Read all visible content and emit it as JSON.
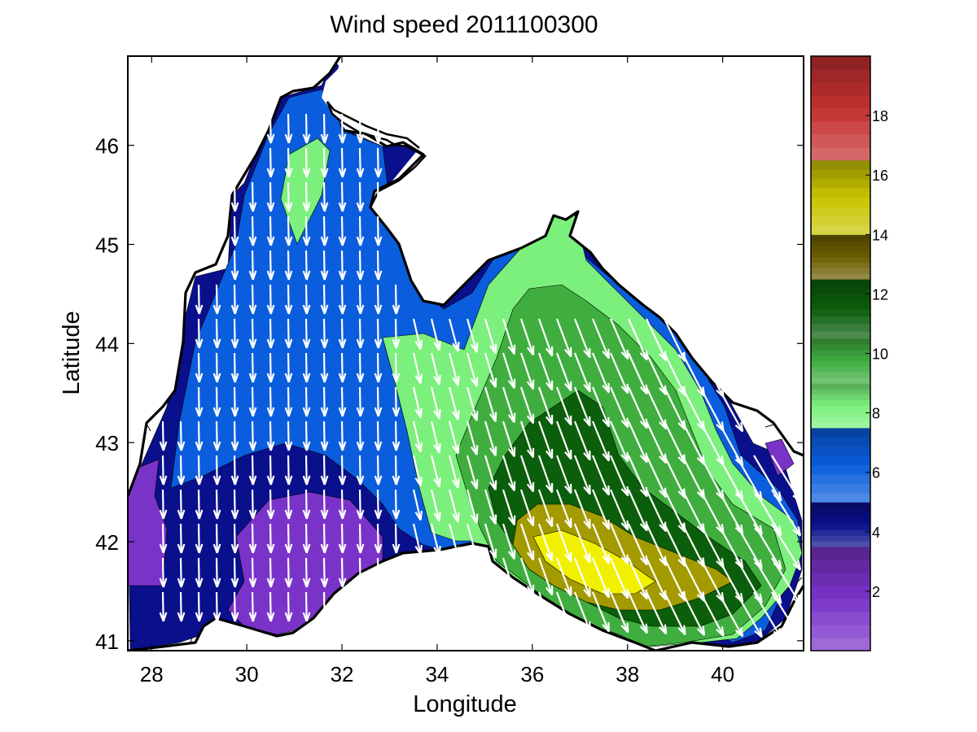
{
  "chart_data": {
    "type": "heatmap",
    "subtype": "filled contour map with wind vectors",
    "title": "Wind speed 2011100300",
    "xlabel": "Longitude",
    "ylabel": "Latitude",
    "xlim": [
      27.5,
      41.7
    ],
    "ylim": [
      40.9,
      46.9
    ],
    "xticks": [
      28,
      30,
      32,
      34,
      36,
      38,
      40
    ],
    "yticks": [
      41,
      42,
      43,
      44,
      45,
      46
    ],
    "xtick_labels": [
      "28",
      "30",
      "32",
      "34",
      "36",
      "38",
      "40"
    ],
    "ytick_labels": [
      "41",
      "42",
      "43",
      "44",
      "45",
      "46"
    ],
    "colorbar": {
      "range": [
        0,
        20
      ],
      "ticks": [
        2,
        4,
        6,
        8,
        10,
        12,
        14,
        16,
        18
      ],
      "tick_labels": [
        "2",
        "4",
        "6",
        "8",
        "10",
        "12",
        "14",
        "16",
        "18"
      ],
      "bands": [
        {
          "from": 0,
          "to": 3.5,
          "color": "#7a33c9"
        },
        {
          "from": 3.5,
          "to": 5,
          "color": "#0a0f8c"
        },
        {
          "from": 5,
          "to": 7.5,
          "color": "#0a5ddc"
        },
        {
          "from": 7.5,
          "to": 9,
          "color": "#7cf07c"
        },
        {
          "from": 9,
          "to": 10.5,
          "color": "#3fae3f"
        },
        {
          "from": 10.5,
          "to": 12.5,
          "color": "#0b5e0b"
        },
        {
          "from": 12.5,
          "to": 14,
          "color": "#6b5e00"
        },
        {
          "from": 14,
          "to": 16.5,
          "color": "#c8c400"
        },
        {
          "from": 16.5,
          "to": 20,
          "color": "#c43030"
        }
      ]
    },
    "contour_levels": [
      {
        "label": "< 3.5",
        "color": "#7a33c9"
      },
      {
        "label": "3.5-5",
        "color": "#0a0f8c"
      },
      {
        "label": "5-7.5",
        "color": "#0a5ddc"
      },
      {
        "label": "7.5-9",
        "color": "#7cf07c"
      },
      {
        "label": "9-10.5",
        "color": "#3fae3f"
      },
      {
        "label": "10.5-12.5",
        "color": "#0b5e0b"
      },
      {
        "label": "12.5-14",
        "color": "#a39a00"
      },
      {
        "label": "14-16.5",
        "color": "#f0f000"
      }
    ],
    "wind_direction": "predominantly from north to south (north-northwest in the east)",
    "grid": false,
    "colors": {
      "background": "#ffffff",
      "land": "#ffffff",
      "vectors": "#ffffff",
      "coastline": "#000000"
    }
  }
}
